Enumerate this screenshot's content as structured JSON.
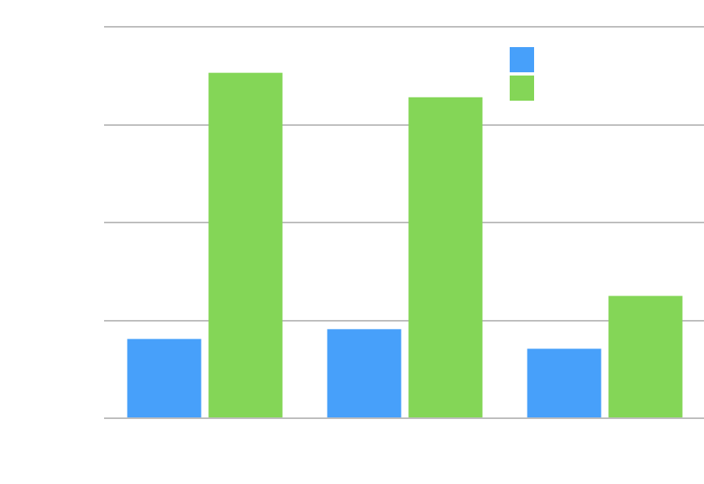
{
  "chart_data": {
    "type": "bar",
    "categories": [
      "",
      "",
      ""
    ],
    "series": [
      {
        "color": "#47a0fa",
        "values": [
          0.81,
          0.91,
          0.71
        ]
      },
      {
        "color": "#84d657",
        "values": [
          3.53,
          3.28,
          1.25
        ]
      }
    ],
    "ylim": [
      0,
      4
    ],
    "grid": true,
    "legend_position": "top-right",
    "title": "",
    "xlabel": "",
    "ylabel": ""
  }
}
